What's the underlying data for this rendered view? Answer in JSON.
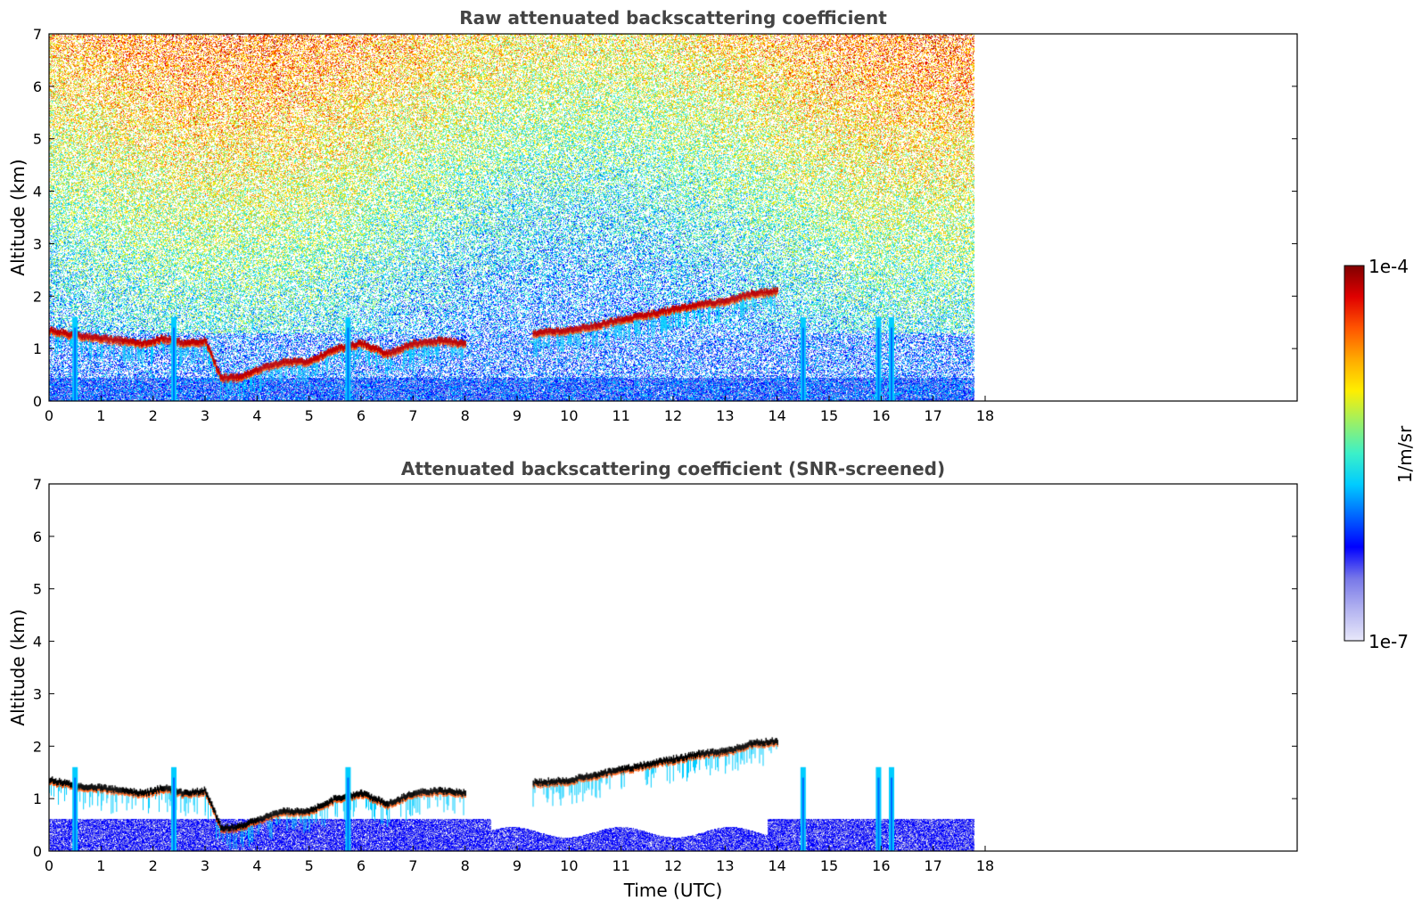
{
  "chart_data": [
    {
      "type": "heatmap",
      "title": "Raw attenuated backscattering coefficient",
      "xlabel": "",
      "ylabel": "Altitude (km)",
      "xlim": [
        0,
        24
      ],
      "ylim": [
        0,
        7
      ],
      "data_end_hour": 17.8,
      "x_ticks": [
        "0",
        "1",
        "2",
        "3",
        "4",
        "5",
        "6",
        "7",
        "8",
        "9",
        "10",
        "11",
        "12",
        "13",
        "14",
        "15",
        "16",
        "17",
        "18"
      ],
      "y_ticks": [
        "0",
        "1",
        "2",
        "3",
        "4",
        "5",
        "6",
        "7"
      ],
      "cloud_layer": {
        "description": "strong backscatter layer (red)",
        "x": [
          0.0,
          0.5,
          1.0,
          1.4,
          1.8,
          2.2,
          2.6,
          3.0,
          3.3,
          3.6,
          4.0,
          4.5,
          5.0,
          5.5,
          6.0,
          6.5,
          7.0,
          7.5,
          8.0,
          9.3,
          10.0,
          10.5,
          11.0,
          11.5,
          12.0,
          12.5,
          13.0,
          13.5,
          14.0
        ],
        "altitude_km": [
          1.35,
          1.25,
          1.2,
          1.15,
          1.1,
          1.2,
          1.1,
          1.15,
          0.45,
          0.45,
          0.6,
          0.75,
          0.75,
          1.0,
          1.1,
          0.9,
          1.1,
          1.15,
          1.1,
          1.3,
          1.35,
          1.45,
          1.55,
          1.65,
          1.75,
          1.85,
          1.9,
          2.05,
          2.1
        ]
      },
      "precipitation_shafts_hour": [
        0.5,
        2.4,
        5.75,
        14.5,
        15.95,
        16.2
      ],
      "boundary_layer_top_km": 0.45
    },
    {
      "type": "heatmap",
      "title": "Attenuated backscattering coefficient (SNR-screened)",
      "xlabel": "Time (UTC)",
      "ylabel": "Altitude (km)",
      "xlim": [
        0,
        24
      ],
      "ylim": [
        0,
        7
      ],
      "data_end_hour": 17.8,
      "x_ticks": [
        "0",
        "1",
        "2",
        "3",
        "4",
        "5",
        "6",
        "7",
        "8",
        "9",
        "10",
        "11",
        "12",
        "13",
        "14",
        "15",
        "16",
        "17",
        "18"
      ],
      "y_ticks": [
        "0",
        "1",
        "2",
        "3",
        "4",
        "5",
        "6",
        "7"
      ],
      "screened_layer_top_km": 0.6
    }
  ],
  "colorbar": {
    "label": "1/m/sr",
    "max_label": "1e-4",
    "min_label": "1e-7",
    "colormap": [
      "#e8e8fa",
      "#b3b3f0",
      "#7777e8",
      "#0000ff",
      "#0066ff",
      "#00ccff",
      "#3cf0c8",
      "#9cf065",
      "#ffee00",
      "#ffaa00",
      "#ff5500",
      "#e00000",
      "#800000"
    ]
  }
}
